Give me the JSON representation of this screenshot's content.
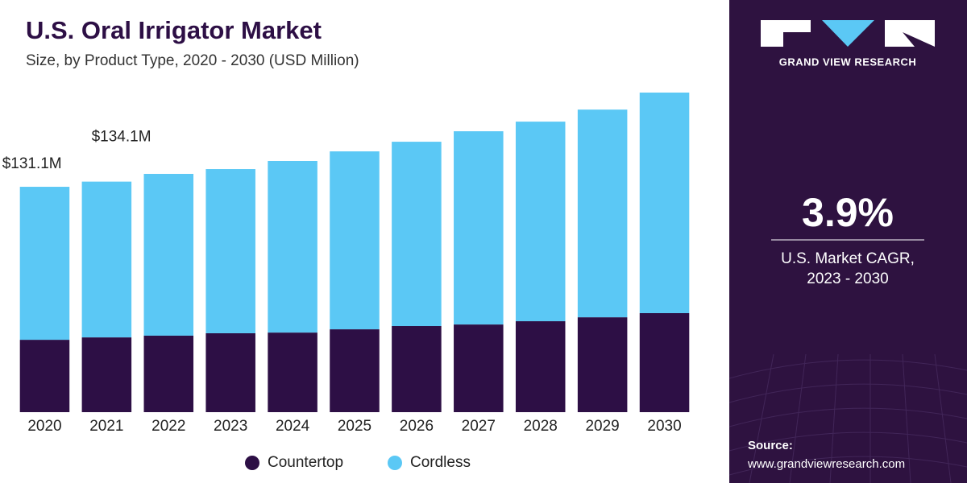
{
  "chart_data": {
    "type": "stacked_bar",
    "title": "U.S. Oral Irrigator Market",
    "subtitle": "Size, by Product Type, 2020 - 2030 (USD Million)",
    "categories": [
      "2020",
      "2021",
      "2022",
      "2023",
      "2024",
      "2025",
      "2026",
      "2027",
      "2028",
      "2029",
      "2030"
    ],
    "series": [
      {
        "name": "Countertop",
        "color": "#2d0f45",
        "values": [
          42.1,
          43.5,
          44.5,
          45.9,
          46.3,
          48.2,
          50.1,
          51.0,
          52.9,
          55.2,
          57.6
        ]
      },
      {
        "name": "Cordless",
        "color": "#5bc8f5",
        "values": [
          89.0,
          90.6,
          94.1,
          95.5,
          99.8,
          103.5,
          107.2,
          112.4,
          116.1,
          120.8,
          128.3
        ]
      }
    ],
    "annotations": [
      {
        "category": "2020",
        "value": 131.1,
        "label": "$131.1M"
      },
      {
        "category": "2021",
        "value": 134.1,
        "label": "$134.1M"
      }
    ],
    "legend": "bottom"
  },
  "sidebar": {
    "brand": "GRAND VIEW RESEARCH",
    "cagr": "3.9%",
    "cagr_label_1": "U.S. Market CAGR,",
    "cagr_label_2": "2023 - 2030",
    "source_title": "Source:",
    "source_url": "www.grandviewresearch.com"
  }
}
